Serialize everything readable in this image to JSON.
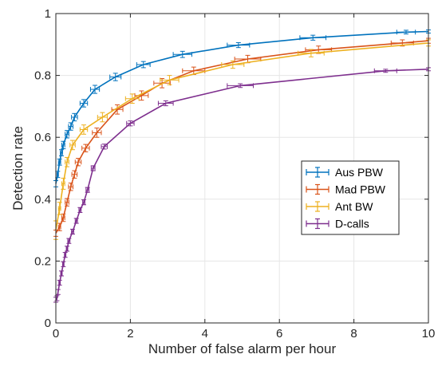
{
  "chart_data": {
    "type": "line",
    "title": "",
    "xlabel": "Number of false alarm per hour",
    "ylabel": "Detection rate",
    "xlim": [
      0,
      10
    ],
    "ylim": [
      0,
      1
    ],
    "xticks": [
      "0",
      "2",
      "4",
      "6",
      "8",
      "10"
    ],
    "yticks": [
      "0",
      "0.2",
      "0.4",
      "0.6",
      "0.8",
      "1"
    ],
    "grid": true,
    "legend_position": "right-center",
    "series": [
      {
        "name": "Aus PBW",
        "color": "#0072BD",
        "points": [
          [
            0,
            0.45
          ],
          [
            0.05,
            0.48
          ],
          [
            0.1,
            0.52
          ],
          [
            0.15,
            0.55
          ],
          [
            0.2,
            0.575
          ],
          [
            0.3,
            0.61
          ],
          [
            0.4,
            0.635
          ],
          [
            0.5,
            0.665
          ],
          [
            0.75,
            0.71
          ],
          [
            1.05,
            0.755
          ],
          [
            1.6,
            0.795
          ],
          [
            2.35,
            0.835
          ],
          [
            3.4,
            0.868
          ],
          [
            4.9,
            0.898
          ],
          [
            6.9,
            0.922
          ],
          [
            9.4,
            0.94
          ],
          [
            10,
            0.942
          ]
        ],
        "errors": [
          0.01,
          0.01,
          0.01,
          0.01,
          0.012,
          0.012,
          0.012,
          0.012,
          0.012,
          0.013,
          0.012,
          0.01,
          0.01,
          0.008,
          0.008,
          0.006,
          0.005
        ],
        "xerrors": [
          0.02,
          0.02,
          0.03,
          0.03,
          0.04,
          0.05,
          0.06,
          0.08,
          0.1,
          0.12,
          0.15,
          0.18,
          0.25,
          0.3,
          0.35,
          0.25,
          0
        ]
      },
      {
        "name": "Mad PBW",
        "color": "#D95319",
        "points": [
          [
            0,
            0.29
          ],
          [
            0.1,
            0.31
          ],
          [
            0.2,
            0.34
          ],
          [
            0.3,
            0.39
          ],
          [
            0.4,
            0.44
          ],
          [
            0.5,
            0.48
          ],
          [
            0.6,
            0.52
          ],
          [
            0.8,
            0.565
          ],
          [
            1.1,
            0.615
          ],
          [
            1.65,
            0.69
          ],
          [
            2.3,
            0.735
          ],
          [
            2.85,
            0.775
          ],
          [
            3.7,
            0.815
          ],
          [
            5.15,
            0.853
          ],
          [
            7.05,
            0.883
          ],
          [
            9.3,
            0.905
          ],
          [
            10,
            0.912
          ]
        ],
        "errors": [
          0.01,
          0.012,
          0.012,
          0.012,
          0.012,
          0.012,
          0.012,
          0.012,
          0.015,
          0.015,
          0.015,
          0.015,
          0.012,
          0.012,
          0.012,
          0.01,
          0.008
        ],
        "xerrors": [
          0.02,
          0.03,
          0.04,
          0.05,
          0.06,
          0.07,
          0.08,
          0.1,
          0.12,
          0.15,
          0.18,
          0.22,
          0.3,
          0.35,
          0.35,
          0.3,
          0
        ]
      },
      {
        "name": "Ant BW",
        "color": "#EDB120",
        "points": [
          [
            0,
            0.3
          ],
          [
            0.1,
            0.37
          ],
          [
            0.2,
            0.45
          ],
          [
            0.3,
            0.52
          ],
          [
            0.45,
            0.575
          ],
          [
            0.75,
            0.625
          ],
          [
            1.25,
            0.665
          ],
          [
            2.05,
            0.725
          ],
          [
            3.05,
            0.785
          ],
          [
            4.75,
            0.835
          ],
          [
            6.85,
            0.872
          ],
          [
            10,
            0.905
          ]
        ],
        "errors": [
          0.03,
          0.02,
          0.018,
          0.015,
          0.015,
          0.015,
          0.015,
          0.015,
          0.015,
          0.012,
          0.012,
          0.01
        ],
        "xerrors": [
          0.02,
          0.03,
          0.04,
          0.05,
          0.07,
          0.1,
          0.13,
          0.18,
          0.25,
          0.3,
          0.35,
          0
        ]
      },
      {
        "name": "D-calls",
        "color": "#7E2F8E",
        "points": [
          [
            0,
            0.075
          ],
          [
            0.03,
            0.08
          ],
          [
            0.06,
            0.1
          ],
          [
            0.1,
            0.13
          ],
          [
            0.15,
            0.16
          ],
          [
            0.2,
            0.19
          ],
          [
            0.25,
            0.22
          ],
          [
            0.3,
            0.24
          ],
          [
            0.35,
            0.265
          ],
          [
            0.45,
            0.295
          ],
          [
            0.55,
            0.33
          ],
          [
            0.65,
            0.365
          ],
          [
            0.75,
            0.39
          ],
          [
            0.85,
            0.43
          ],
          [
            1.0,
            0.5
          ],
          [
            1.3,
            0.57
          ],
          [
            2.0,
            0.645
          ],
          [
            2.95,
            0.71
          ],
          [
            4.95,
            0.767
          ],
          [
            8.85,
            0.815
          ],
          [
            10,
            0.82
          ]
        ],
        "errors": [
          0.008,
          0.008,
          0.008,
          0.008,
          0.008,
          0.008,
          0.008,
          0.008,
          0.008,
          0.008,
          0.008,
          0.008,
          0.008,
          0.008,
          0.008,
          0.008,
          0.008,
          0.008,
          0.006,
          0.005,
          0.005
        ],
        "xerrors": [
          0.01,
          0.01,
          0.01,
          0.02,
          0.02,
          0.02,
          0.02,
          0.02,
          0.03,
          0.03,
          0.03,
          0.03,
          0.03,
          0.04,
          0.05,
          0.08,
          0.1,
          0.2,
          0.35,
          0.3,
          0
        ]
      }
    ]
  }
}
